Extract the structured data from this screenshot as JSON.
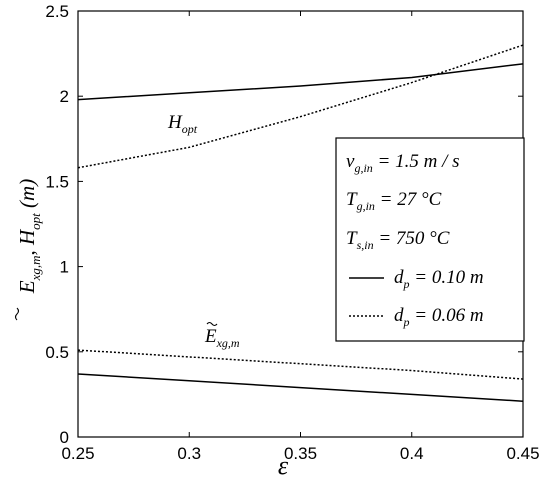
{
  "chart_data": {
    "type": "line",
    "xlabel": "ε",
    "ylabel": {
      "main_e": "E",
      "sub_e": "xg,m",
      "sep": ",",
      "main_h": "H",
      "sub_h": "opt",
      "unit": "(m)"
    },
    "xlim": [
      0.25,
      0.45
    ],
    "ylim": [
      0,
      2.5
    ],
    "x_ticks": [
      "0.25",
      "0.3",
      "0.35",
      "0.4",
      "0.45"
    ],
    "y_ticks": [
      "0",
      "0.5",
      "1",
      "1.5",
      "2",
      "2.5"
    ],
    "grid": false,
    "series": [
      {
        "key": "h_solid",
        "style": "solid",
        "x": [
          0.25,
          0.3,
          0.35,
          0.4,
          0.45
        ],
        "y": [
          1.98,
          2.02,
          2.06,
          2.11,
          2.19
        ]
      },
      {
        "key": "h_dotted",
        "style": "dotted",
        "x": [
          0.25,
          0.3,
          0.35,
          0.4,
          0.45
        ],
        "y": [
          1.58,
          1.7,
          1.88,
          2.08,
          2.3
        ]
      },
      {
        "key": "e_dotted",
        "style": "dotted",
        "x": [
          0.25,
          0.3,
          0.35,
          0.4,
          0.45
        ],
        "y": [
          0.51,
          0.47,
          0.43,
          0.39,
          0.34
        ]
      },
      {
        "key": "e_solid",
        "style": "solid",
        "x": [
          0.25,
          0.3,
          0.35,
          0.4,
          0.45
        ],
        "y": [
          0.37,
          0.33,
          0.29,
          0.25,
          0.21
        ]
      }
    ],
    "annotations": {
      "hopt": {
        "main": "H",
        "sub": "opt"
      },
      "exg": {
        "main": "E",
        "sub": "xg,m"
      }
    },
    "legend": {
      "placement": "right",
      "conditions": [
        {
          "main": "v",
          "sub": "g,in",
          "text": " = 1.5 m / s"
        },
        {
          "main": "T",
          "sub": "g,in",
          "text": " = 27 °C"
        },
        {
          "main": "T",
          "sub": "s,in",
          "text": " = 750 °C"
        }
      ],
      "entries": [
        {
          "style": "solid",
          "main": "d",
          "sub": "p",
          "text": " = 0.10 m"
        },
        {
          "style": "dotted",
          "main": "d",
          "sub": "p",
          "text": " = 0.06 m"
        }
      ]
    }
  }
}
